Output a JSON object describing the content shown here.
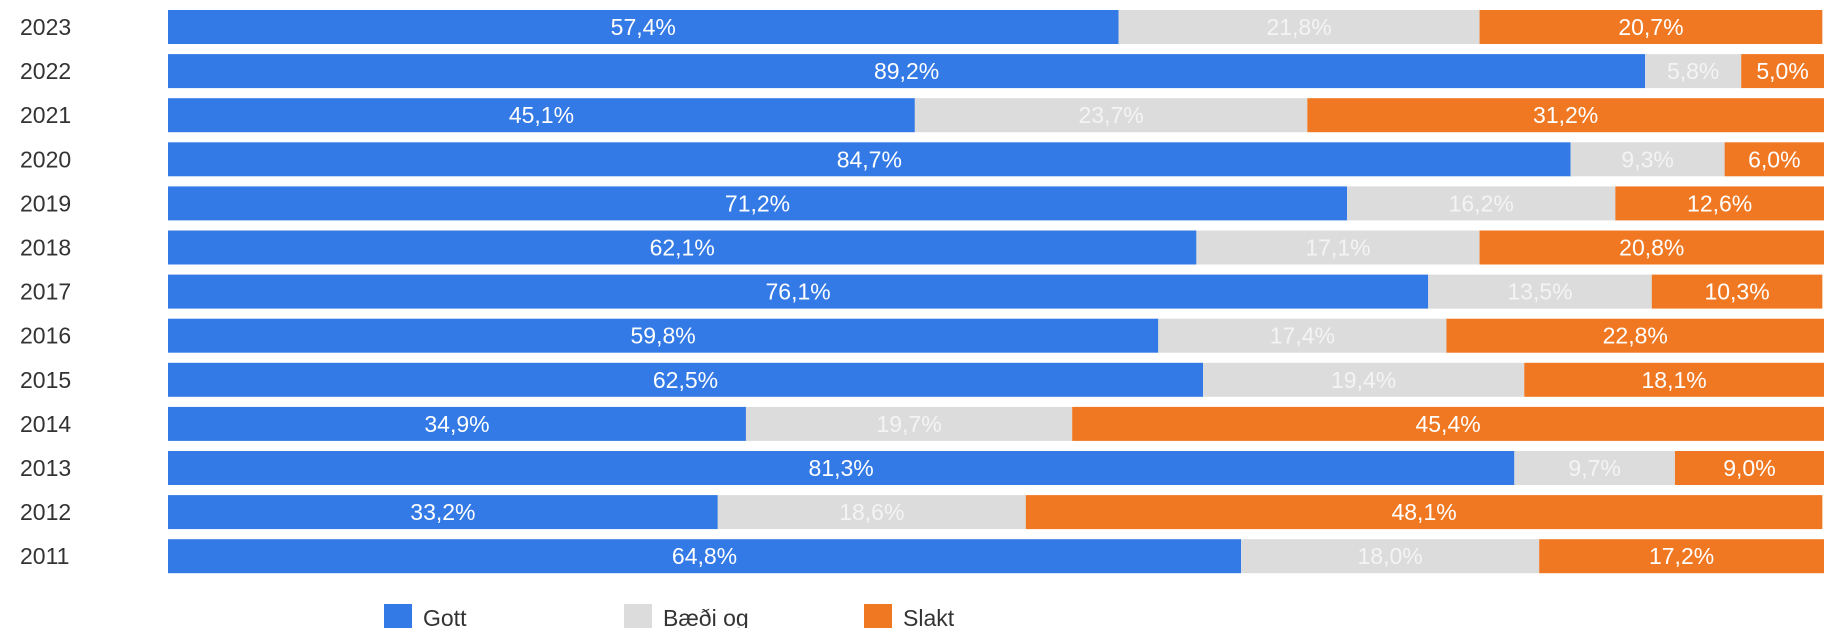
{
  "chart_data": {
    "type": "bar",
    "orientation": "horizontal",
    "stacked": "percent",
    "categories": [
      "2023",
      "2022",
      "2021",
      "2020",
      "2019",
      "2018",
      "2017",
      "2016",
      "2015",
      "2014",
      "2013",
      "2012",
      "2011"
    ],
    "series": [
      {
        "name": "Gott",
        "color": "#337ae6",
        "label_color": "#ffffff",
        "values": [
          57.4,
          89.2,
          45.1,
          84.7,
          71.2,
          62.1,
          76.1,
          59.8,
          62.5,
          34.9,
          81.3,
          33.2,
          64.8
        ],
        "labels": [
          "57,4%",
          "89,2%",
          "45,1%",
          "84,7%",
          "71,2%",
          "62,1%",
          "76,1%",
          "59,8%",
          "62,5%",
          "34,9%",
          "81,3%",
          "33,2%",
          "64,8%"
        ]
      },
      {
        "name": "Bæði og",
        "color": "#dcdcdc",
        "label_color": "#f4f4f4",
        "values": [
          21.8,
          5.8,
          23.7,
          9.3,
          16.2,
          17.1,
          13.5,
          17.4,
          19.4,
          19.7,
          9.7,
          18.6,
          18.0
        ],
        "labels": [
          "21,8%",
          "5,8%",
          "23,7%",
          "9,3%",
          "16,2%",
          "17,1%",
          "13,5%",
          "17,4%",
          "19,4%",
          "19,7%",
          "9,7%",
          "18,6%",
          "18,0%"
        ]
      },
      {
        "name": "Slakt",
        "color": "#f07822",
        "label_color": "#ffffff",
        "values": [
          20.7,
          5.0,
          31.2,
          6.0,
          12.6,
          20.8,
          10.3,
          22.8,
          18.1,
          45.4,
          9.0,
          48.1,
          17.2
        ],
        "labels": [
          "20,7%",
          "5,0%",
          "31,2%",
          "6,0%",
          "12,6%",
          "20,8%",
          "10,3%",
          "22,8%",
          "18,1%",
          "45,4%",
          "9,0%",
          "48,1%",
          "17,2%"
        ]
      }
    ],
    "xlim": [
      0,
      100
    ],
    "grid": false,
    "legend": "bottom",
    "title": "",
    "xlabel": "",
    "ylabel": ""
  }
}
